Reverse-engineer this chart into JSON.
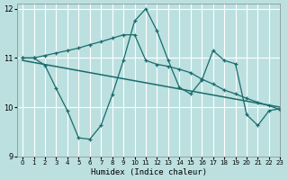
{
  "xlabel": "Humidex (Indice chaleur)",
  "background_color": "#bce0e0",
  "grid_color": "#ffffff",
  "line_color": "#1a6b6b",
  "xlim": [
    -0.5,
    23
  ],
  "ylim": [
    9,
    12.1
  ],
  "yticks": [
    9,
    10,
    11,
    12
  ],
  "xticks": [
    0,
    1,
    2,
    3,
    4,
    5,
    6,
    7,
    8,
    9,
    10,
    11,
    12,
    13,
    14,
    15,
    16,
    17,
    18,
    19,
    20,
    21,
    22,
    23
  ],
  "series1_x": [
    0,
    1,
    2,
    3,
    4,
    5,
    6,
    7,
    8,
    9,
    10,
    11,
    12,
    13,
    14,
    15,
    16,
    17,
    18,
    19,
    20,
    21,
    22,
    23
  ],
  "series1_y": [
    11.0,
    11.0,
    10.85,
    10.38,
    9.93,
    9.38,
    9.35,
    9.63,
    10.25,
    10.95,
    11.75,
    12.0,
    11.55,
    10.95,
    10.4,
    10.27,
    10.55,
    11.15,
    10.95,
    10.88,
    9.85,
    9.63,
    9.93,
    9.97
  ],
  "series2_x": [
    0,
    1,
    2,
    3,
    4,
    5,
    6,
    7,
    8,
    9,
    10,
    11,
    12,
    13,
    14,
    15,
    16,
    17,
    18,
    19,
    20,
    21,
    22,
    23
  ],
  "series2_y": [
    11.0,
    11.0,
    11.05,
    11.1,
    11.15,
    11.2,
    11.27,
    11.33,
    11.4,
    11.47,
    11.47,
    10.95,
    10.87,
    10.83,
    10.77,
    10.7,
    10.57,
    10.47,
    10.35,
    10.27,
    10.18,
    10.1,
    10.03,
    9.95
  ],
  "series3_x": [
    0,
    23
  ],
  "series3_y": [
    10.95,
    10.0
  ]
}
